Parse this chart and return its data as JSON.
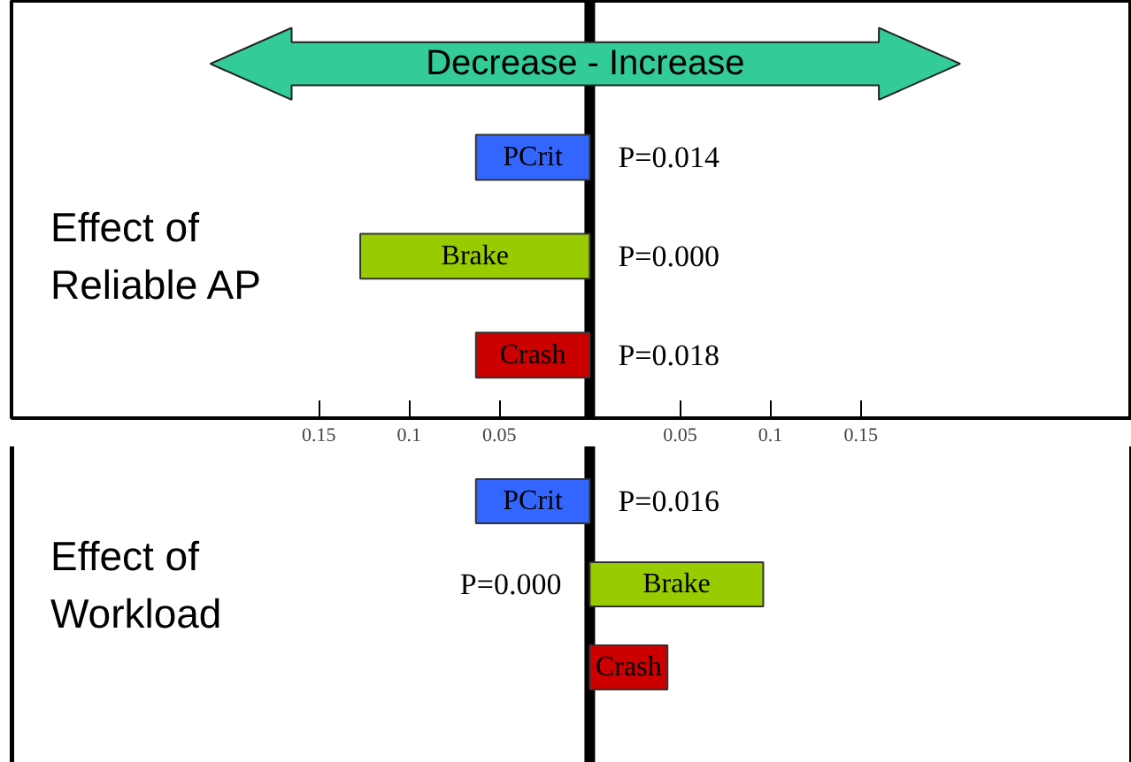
{
  "chart_data": [
    {
      "type": "bar",
      "orientation": "horizontal",
      "title": "Effect of Reliable AP",
      "categories": [
        "PCrit",
        "Brake",
        "Crash"
      ],
      "values": [
        -0.063,
        -0.127,
        -0.063
      ],
      "colors": [
        "#3366ff",
        "#99cc00",
        "#cc0000"
      ],
      "xlim": [
        -0.32,
        0.3
      ],
      "xticks": [
        {
          "value": -0.15,
          "label": "0.15"
        },
        {
          "value": -0.1,
          "label": "0.1"
        },
        {
          "value": -0.05,
          "label": "0.05"
        },
        0.05,
        0.1,
        0.15
      ],
      "tick_labels": "x",
      "grid": false,
      "ref_lines": [
        {
          "axis": "x",
          "value": 0,
          "color": "#000000"
        }
      ],
      "subtitle": "Decrease - Increase",
      "annotations": [
        "P=0.014",
        "P=0.000",
        "P=0.018"
      ]
    },
    {
      "type": "bar",
      "orientation": "horizontal",
      "title": "Effect of Workload",
      "categories": [
        "PCrit",
        "Brake",
        "Crash"
      ],
      "values": [
        -0.063,
        0.096,
        0.043
      ],
      "colors": [
        "#3366ff",
        "#99cc00",
        "#cc0000"
      ],
      "xlim": [
        -0.32,
        0.3
      ],
      "tick_labels": false,
      "grid": false,
      "ref_lines": [
        {
          "axis": "x",
          "value": 0,
          "color": "#000000"
        }
      ],
      "annotations": [
        "P=0.016",
        "P=0.000"
      ]
    }
  ]
}
